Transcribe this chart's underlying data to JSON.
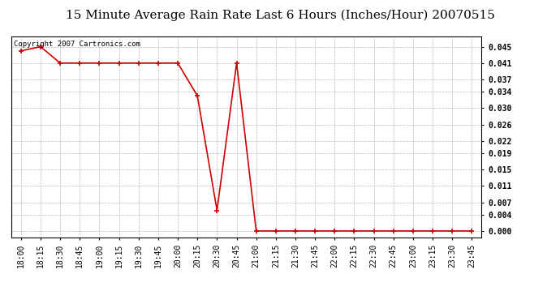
{
  "title": "15 Minute Average Rain Rate Last 6 Hours (Inches/Hour) 20070515",
  "copyright_text": "Copyright 2007 Cartronics.com",
  "x_labels": [
    "18:00",
    "18:15",
    "18:30",
    "18:45",
    "19:00",
    "19:15",
    "19:30",
    "19:45",
    "20:00",
    "20:15",
    "20:30",
    "20:45",
    "21:00",
    "21:15",
    "21:30",
    "21:45",
    "22:00",
    "22:15",
    "22:30",
    "22:45",
    "23:00",
    "23:15",
    "23:30",
    "23:45"
  ],
  "y_values": [
    0.044,
    0.045,
    0.041,
    0.041,
    0.041,
    0.041,
    0.041,
    0.041,
    0.041,
    0.033,
    0.005,
    0.041,
    0.0,
    0.0,
    0.0,
    0.0,
    0.0,
    0.0,
    0.0,
    0.0,
    0.0,
    0.0,
    0.0,
    0.0
  ],
  "yticks": [
    0.0,
    0.004,
    0.007,
    0.011,
    0.015,
    0.019,
    0.022,
    0.026,
    0.03,
    0.034,
    0.037,
    0.041,
    0.045
  ],
  "line_color": "#cc0000",
  "marker": "+",
  "marker_size": 5,
  "line_width": 1.2,
  "background_color": "#ffffff",
  "grid_color": "#bbbbbb",
  "title_fontsize": 11,
  "tick_fontsize": 7,
  "copyright_fontsize": 6.5,
  "ylim": [
    -0.0015,
    0.0475
  ]
}
